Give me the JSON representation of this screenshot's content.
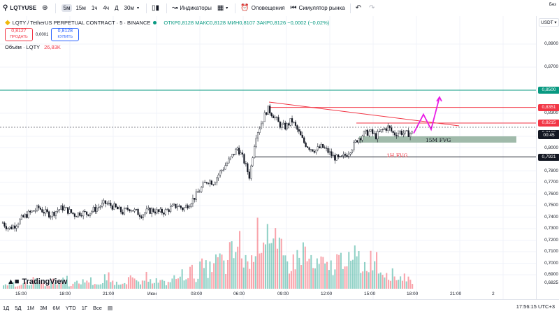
{
  "toolbar": {
    "symbol": "LQTYUSE",
    "timeframes": [
      "5м",
      "15м",
      "1ч",
      "4ч",
      "Д",
      "30м"
    ],
    "active_timeframe": "5м",
    "indicators_label": "Индикаторы",
    "alerts_label": "Оповещения",
    "replay_label": "Симулятор рынка",
    "right_edge": "Без"
  },
  "legend": {
    "title": "LQTY / TetherUS PERPETUAL CONTRACT · 5 · BINANCE",
    "ohlc": "ОТКР0,8128 МАКС0,8128 МИН0,8107 ЗАКР0,8126 −0,0002 (−0,02%)"
  },
  "trade": {
    "sell_price": "0,8127",
    "sell_label": "ПРОДАТЬ",
    "spread": "0,0001",
    "buy_price": "0,8128",
    "buy_label": "КУПИТЬ"
  },
  "volume_legend": {
    "label": "Объём · LQTY",
    "value": "26,83K"
  },
  "price_axis": {
    "currency": "USDT",
    "labels": [
      "0,8900",
      "0,8700",
      "0,8500",
      "0,8300",
      "0,8100",
      "0,8000",
      "0,7800",
      "0,7700",
      "0,7600",
      "0,7500",
      "0,7400",
      "0,7300",
      "0,7200",
      "0,7100",
      "0,7000",
      "0,6900",
      "0,6825"
    ],
    "tags": [
      {
        "text": "0,8500",
        "color": "#089981",
        "price": 0.85
      },
      {
        "text": "0,8351",
        "color": "#f23645",
        "price": 0.8351
      },
      {
        "text": "0,8215",
        "color": "#f23645",
        "price": 0.8215
      },
      {
        "text": "0,8126",
        "color": "#131722",
        "price": 0.8126
      },
      {
        "text": "00:45",
        "color": "#131722",
        "price": 0.8105
      },
      {
        "text": "0,7921",
        "color": "#131722",
        "price": 0.7921
      }
    ]
  },
  "time_axis": [
    "15:00",
    "18:00",
    "21:00",
    "Июн",
    "03:00",
    "06:00",
    "09:00",
    "12:00",
    "15:00",
    "18:00",
    "21:00",
    "2"
  ],
  "annotations": {
    "fvg15": "15M FVG",
    "fvg1h": "1H FVG"
  },
  "chart_data": {
    "type": "candlestick",
    "symbol": "LQTYUSDT.P",
    "interval": "5",
    "ylim": [
      0.68,
      0.9
    ],
    "last_price": 0.8126,
    "levels": [
      {
        "name": "resistance-high",
        "price": 0.85,
        "color": "#089981"
      },
      {
        "name": "resistance",
        "price": 0.8351,
        "color": "#f23645"
      },
      {
        "name": "level",
        "price": 0.8215,
        "color": "#f23645"
      },
      {
        "name": "support",
        "price": 0.7921,
        "color": "#131722"
      }
    ],
    "price_path": [
      0.735,
      0.73,
      0.733,
      0.738,
      0.742,
      0.745,
      0.748,
      0.744,
      0.742,
      0.746,
      0.748,
      0.745,
      0.742,
      0.744,
      0.743,
      0.746,
      0.749,
      0.752,
      0.75,
      0.747,
      0.744,
      0.748,
      0.745,
      0.742,
      0.745,
      0.746,
      0.744,
      0.745,
      0.748,
      0.75,
      0.747,
      0.752,
      0.758,
      0.765,
      0.772,
      0.77,
      0.778,
      0.785,
      0.792,
      0.8,
      0.79,
      0.775,
      0.81,
      0.822,
      0.834,
      0.828,
      0.82,
      0.818,
      0.824,
      0.815,
      0.805,
      0.8,
      0.798,
      0.801,
      0.797,
      0.792,
      0.79,
      0.794,
      0.8,
      0.808,
      0.812,
      0.814,
      0.81,
      0.815,
      0.818,
      0.812,
      0.814,
      0.812,
      0.813
    ],
    "projection": [
      0.8126,
      0.829,
      0.816,
      0.844
    ],
    "volume": [
      3,
      4,
      2,
      5,
      3,
      6,
      4,
      3,
      5,
      4,
      7,
      3,
      4,
      5,
      6,
      4,
      3,
      8,
      5,
      4,
      6,
      7,
      5,
      4,
      9,
      6,
      5,
      4,
      7,
      8,
      10,
      12,
      9,
      15,
      14,
      18,
      20,
      16,
      24,
      30,
      22,
      18,
      35,
      40,
      45,
      30,
      25,
      20,
      18,
      22,
      26,
      20,
      15,
      18,
      14,
      16,
      20,
      25,
      18,
      22,
      16,
      20,
      24,
      14,
      12,
      10,
      8,
      9,
      6
    ]
  }
}
